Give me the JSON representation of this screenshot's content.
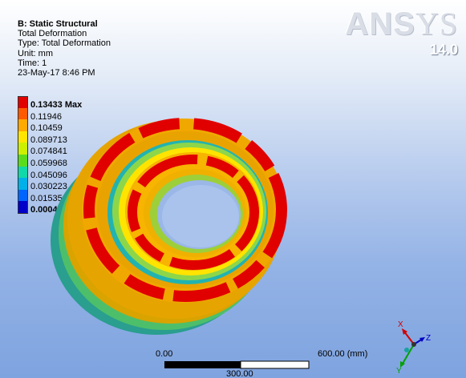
{
  "info": {
    "title": "B: Static Structural",
    "lines": [
      "Total Deformation",
      "Type: Total Deformation",
      "Unit: mm",
      "Time: 1",
      "23-May-17 8:46 PM"
    ]
  },
  "logo": {
    "brand_left": "ANS",
    "brand_right": "YS",
    "version": "14.0"
  },
  "legend": {
    "labels": [
      "0.13433 Max",
      "0.11946",
      "0.10459",
      "0.089713",
      "0.074841",
      "0.059968",
      "0.045096",
      "0.030223",
      "0.015351",
      "0.00047859 Min"
    ],
    "colors": [
      "#e00000",
      "#ff5a00",
      "#ffaa00",
      "#ffe600",
      "#ccf000",
      "#5adc1e",
      "#10d8a8",
      "#00b0e8",
      "#0064ff",
      "#0000c8"
    ]
  },
  "scale": {
    "left": "0.00",
    "mid": "300.00",
    "right": "600.00 (mm)"
  },
  "triad": {
    "x": "X",
    "y": "Y",
    "z": "Z"
  }
}
